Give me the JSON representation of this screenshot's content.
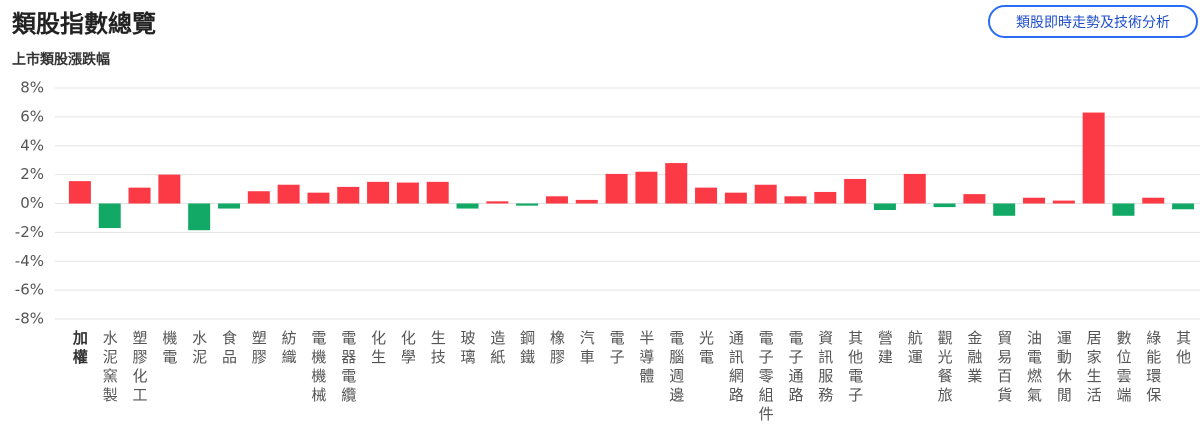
{
  "header": {
    "title": "類股指數總覽",
    "button": "類股即時走勢及技術分析"
  },
  "chart_data": {
    "type": "bar",
    "subtitle": "上市類股漲跌幅",
    "categories": [
      "加權",
      "水泥窯製",
      "塑膠化工",
      "機電",
      "水泥",
      "食品",
      "塑膠",
      "紡織",
      "電機機械",
      "電器電纜",
      "化生",
      "化學",
      "生技",
      "玻璃",
      "造紙",
      "鋼鐵",
      "橡膠",
      "汽車",
      "電子",
      "半導體",
      "電腦週邊",
      "光電",
      "通訊網路",
      "電子零組件",
      "電子通路",
      "資訊服務",
      "其他電子",
      "營建",
      "航運",
      "觀光餐旅",
      "金融業",
      "貿易百貨",
      "油電燃氣",
      "運動休閒",
      "居家生活",
      "數位雲端",
      "綠能環保",
      "其他"
    ],
    "values": [
      1.55,
      -1.7,
      1.1,
      2.0,
      -1.85,
      -0.35,
      0.85,
      1.3,
      0.75,
      1.15,
      1.5,
      1.45,
      1.5,
      -0.35,
      0.15,
      -0.15,
      0.5,
      0.25,
      2.05,
      2.2,
      2.8,
      1.1,
      0.75,
      1.3,
      0.5,
      0.8,
      1.7,
      -0.45,
      2.05,
      -0.25,
      0.65,
      -0.85,
      0.4,
      0.2,
      6.3,
      -0.85,
      0.4,
      -0.4
    ],
    "up_color": "#fc3a46",
    "down_color": "#12a865",
    "ylim": [
      -8,
      8
    ],
    "yticks": [
      {
        "value": -8,
        "label": "-8%"
      },
      {
        "value": -6,
        "label": "-6%"
      },
      {
        "value": -4,
        "label": "-4%"
      },
      {
        "value": -2,
        "label": "-2%"
      },
      {
        "value": 0,
        "label": "0%"
      },
      {
        "value": 2,
        "label": "2%"
      },
      {
        "value": 4,
        "label": "4%"
      },
      {
        "value": 6,
        "label": "6%"
      },
      {
        "value": 8,
        "label": "8%"
      }
    ],
    "grid": true
  }
}
